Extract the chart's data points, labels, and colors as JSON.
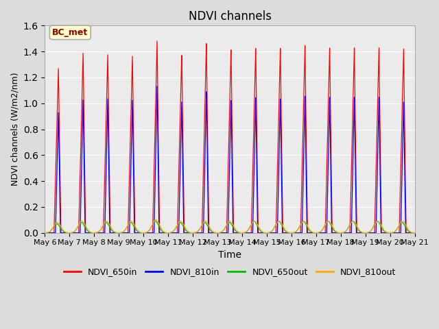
{
  "title": "NDVI channels",
  "xlabel": "Time",
  "ylabel": "NDVI channels (W/m2/nm)",
  "annotation": "BC_met",
  "ylim": [
    0,
    1.6
  ],
  "x_tick_labels": [
    "May 6",
    "May 7",
    "May 8",
    "May 9",
    "May 10",
    "May 11",
    "May 12",
    "May 13",
    "May 14",
    "May 15",
    "May 16",
    "May 17",
    "May 18",
    "May 19",
    "May 20",
    "May 21"
  ],
  "colors": {
    "NDVI_650in": "#ff0000",
    "NDVI_810in": "#0000ff",
    "NDVI_650out": "#00bb00",
    "NDVI_810out": "#ffaa00"
  },
  "bg_color": "#dcdcdc",
  "plot_bg_color": "#ebebeb",
  "num_cycles": 15,
  "points_per_cycle": 500,
  "red_peaks": [
    1.27,
    1.39,
    1.38,
    1.37,
    1.49,
    1.38,
    1.47,
    1.42,
    1.43,
    1.43,
    1.45,
    1.43,
    1.43,
    1.43,
    1.42
  ],
  "blue_peaks": [
    0.93,
    1.03,
    1.04,
    1.03,
    1.14,
    1.02,
    1.1,
    1.03,
    1.05,
    1.04,
    1.06,
    1.05,
    1.05,
    1.05,
    1.01
  ],
  "green_peaks": [
    0.07,
    0.08,
    0.08,
    0.08,
    0.09,
    0.08,
    0.08,
    0.08,
    0.09,
    0.09,
    0.09,
    0.09,
    0.09,
    0.09,
    0.08
  ],
  "orange_peaks": [
    0.08,
    0.09,
    0.09,
    0.09,
    0.1,
    0.09,
    0.09,
    0.09,
    0.09,
    0.09,
    0.09,
    0.09,
    0.09,
    0.09,
    0.09
  ]
}
